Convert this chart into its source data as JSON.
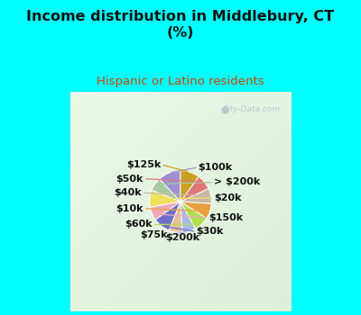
{
  "title": "Income distribution in Middlebury, CT\n(%)",
  "subtitle": "Hispanic or Latino residents",
  "title_color": "#111111",
  "subtitle_color": "#d04000",
  "bg_color": "#00ffff",
  "watermark": "City-Data.com",
  "labels": [
    "$100k",
    "> $200k",
    "$20k",
    "$150k",
    "$30k",
    "$200k",
    "$75k",
    "$60k",
    "$10k",
    "$40k",
    "$50k",
    "$125k"
  ],
  "values": [
    12,
    7,
    9,
    7,
    9,
    7,
    7,
    8,
    8,
    8,
    8,
    10
  ],
  "colors": [
    "#a090d0",
    "#a8c8a0",
    "#f0e060",
    "#f0a8b8",
    "#7070c8",
    "#e8c098",
    "#a8b8e8",
    "#b0e050",
    "#e8a040",
    "#c8b8a8",
    "#e07878",
    "#c8a020"
  ],
  "label_fontsize": 8,
  "label_color": "#111111",
  "startangle": 90
}
